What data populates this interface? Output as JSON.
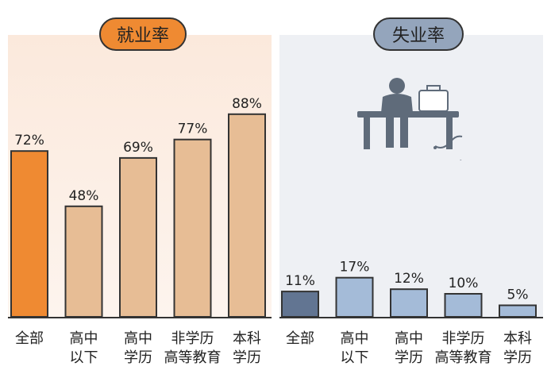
{
  "chart_data": [
    {
      "type": "bar",
      "title": "就业率",
      "categories": [
        "全部",
        "高中以下",
        "高中学历",
        "非学历高等教育",
        "本科学历"
      ],
      "category_lines": [
        [
          "全部"
        ],
        [
          "高中",
          "以下"
        ],
        [
          "高中",
          "学历"
        ],
        [
          "非学历",
          "高等教育"
        ],
        [
          "本科",
          "学历"
        ]
      ],
      "values": [
        72,
        48,
        69,
        77,
        88
      ],
      "value_labels": [
        "72%",
        "48%",
        "69%",
        "77%",
        "88%"
      ],
      "ylim": [
        0,
        100
      ],
      "colors": [
        "#ef8a32",
        "#e7bd95",
        "#e7bd95",
        "#e7bd95",
        "#e7bd95"
      ],
      "grid": false
    },
    {
      "type": "bar",
      "title": "失业率",
      "categories": [
        "全部",
        "高中以下",
        "高中学历",
        "非学历高等教育",
        "本科学历"
      ],
      "category_lines": [
        [
          "全部"
        ],
        [
          "高中",
          "以下"
        ],
        [
          "高中",
          "学历"
        ],
        [
          "非学历",
          "高等教育"
        ],
        [
          "本科",
          "学历"
        ]
      ],
      "values": [
        11,
        17,
        12,
        10,
        5
      ],
      "value_labels": [
        "11%",
        "17%",
        "12%",
        "10%",
        "5%"
      ],
      "ylim": [
        0,
        100
      ],
      "colors": [
        "#627592",
        "#a4bbd8",
        "#a4bbd8",
        "#a4bbd8",
        "#a4bbd8"
      ],
      "grid": false
    }
  ],
  "illustration": {
    "icon": "unemployed-person-on-bench-icon"
  }
}
